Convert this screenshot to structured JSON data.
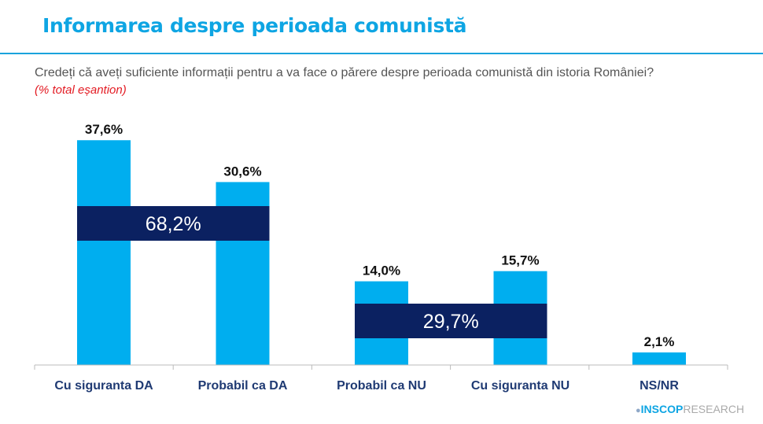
{
  "header": {
    "title": "Informarea despre perioada comunistă",
    "question": "Credeți că aveți suficiente informații pentru a va face o părere despre perioada comunistă din istoria României?",
    "subtitle": "(% total eșantion)"
  },
  "logo": {
    "brand": "INSCOP",
    "suffix": "RESEARCH"
  },
  "colors": {
    "bar": "#00aeef",
    "group_box": "#0b2161",
    "title": "#0ea5e3",
    "subtitle": "#e31b23"
  },
  "chart_data": {
    "type": "bar",
    "title": "",
    "xlabel": "",
    "ylabel": "",
    "categories": [
      "Cu siguranta DA",
      "Probabil ca DA",
      "Probabil ca NU",
      "Cu siguranta NU",
      "NS/NR"
    ],
    "values": [
      37.6,
      30.6,
      14.0,
      15.7,
      2.1
    ],
    "data_labels": [
      "37,6%",
      "30,6%",
      "14,0%",
      "15,7%",
      "2,1%"
    ],
    "ylim": [
      0,
      40
    ],
    "grid": false,
    "groups": [
      {
        "label": "68,2%",
        "categories": [
          0,
          1
        ],
        "value": 68.2
      },
      {
        "label": "29,7%",
        "categories": [
          2,
          3
        ],
        "value": 29.7
      }
    ]
  }
}
